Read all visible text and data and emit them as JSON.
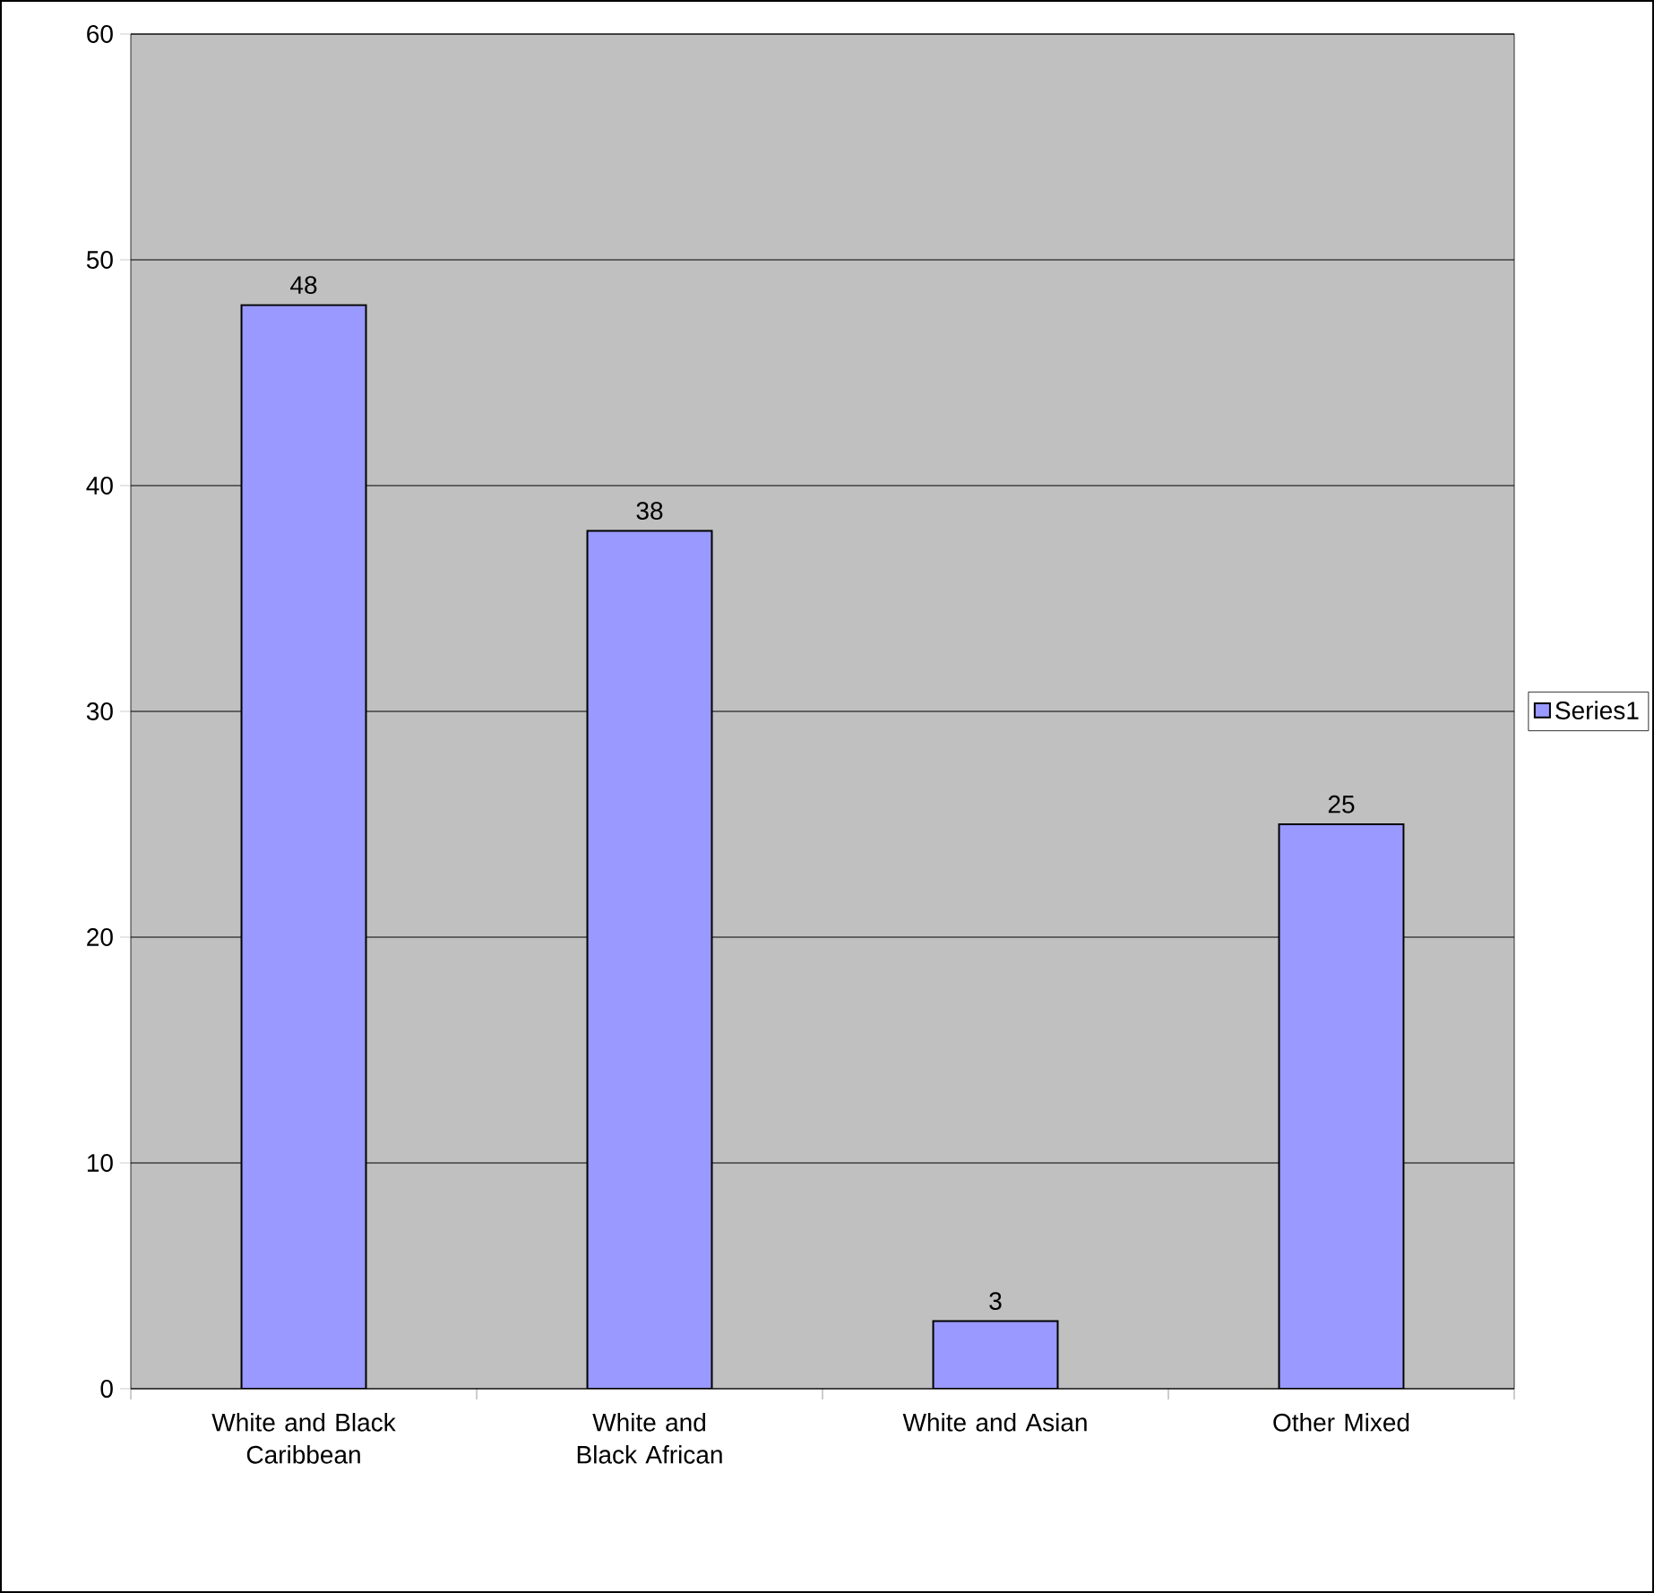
{
  "chart_data": {
    "type": "bar",
    "categories": [
      "White and Black Caribbean",
      "White and Black African",
      "White and Asian",
      "Other Mixed"
    ],
    "series": [
      {
        "name": "Series1",
        "color": "#9999ff",
        "values": [
          48,
          38,
          3,
          25
        ]
      }
    ],
    "ylim": [
      0,
      60
    ],
    "yticks": [
      0,
      10,
      20,
      30,
      40,
      50,
      60
    ],
    "grid": "y",
    "legend": "right",
    "data_labels": true
  }
}
